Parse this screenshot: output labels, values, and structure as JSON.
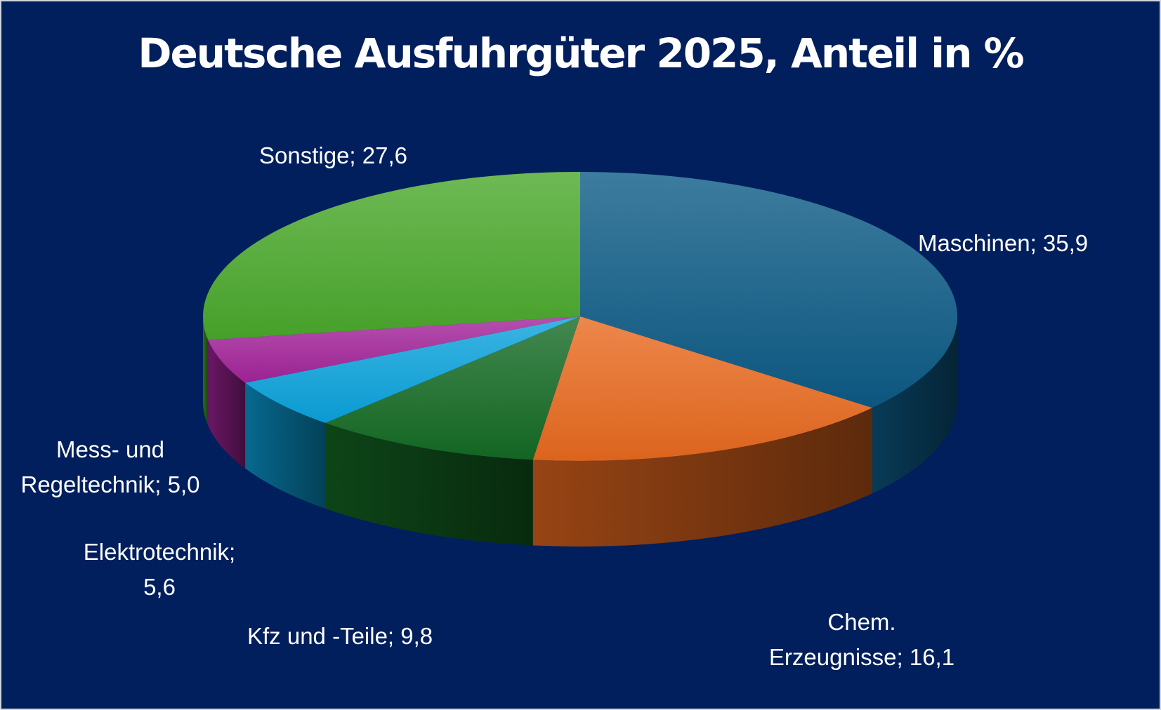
{
  "chart_data": {
    "type": "pie",
    "title": "Deutsche Ausfuhrgüter 2025, Anteil in %",
    "slices": [
      {
        "name": "Maschinen",
        "value": 35.9,
        "label_lines": [
          "Maschinen; 35,9"
        ],
        "color": "#0d5b86"
      },
      {
        "name": "Chem. Erzeugnisse",
        "value": 16.1,
        "label_lines": [
          "Chem.",
          "Erzeugnisse; 16,1"
        ],
        "color": "#e8691f"
      },
      {
        "name": "Kfz und -Teile",
        "value": 9.8,
        "label_lines": [
          "Kfz und -Teile; 9,8"
        ],
        "color": "#146a24"
      },
      {
        "name": "Elektrotechnik",
        "value": 5.6,
        "label_lines": [
          "Elektrotechnik;",
          "5,6"
        ],
        "color": "#0aa2dc"
      },
      {
        "name": "Mess- und Regeltechnik",
        "value": 5.0,
        "label_lines": [
          "Mess- und",
          "Regeltechnik; 5,0"
        ],
        "color": "#a3249a"
      },
      {
        "name": "Sonstige",
        "value": 27.6,
        "label_lines": [
          "Sonstige; 27,6"
        ],
        "color": "#4aa82b"
      }
    ]
  }
}
